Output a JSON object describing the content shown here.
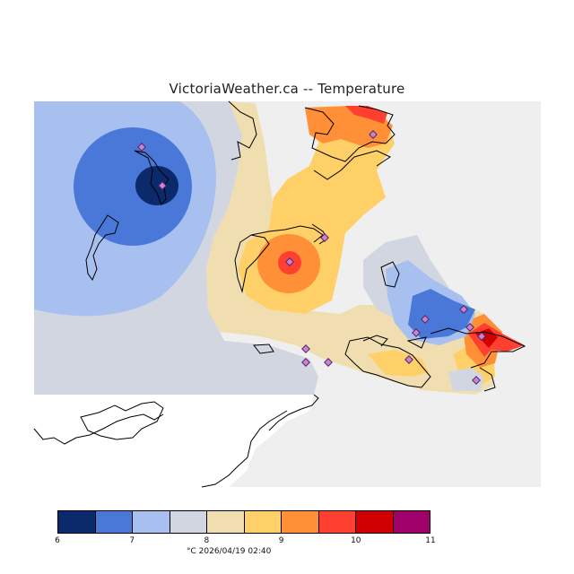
{
  "title": "VictoriaWeather.ca -- Temperature",
  "legend": {
    "colors": [
      "#0b2a6b",
      "#4a78d8",
      "#a8c0f0",
      "#d2d6e0",
      "#f0deb0",
      "#ffd068",
      "#ff9038",
      "#ff4030",
      "#d00000",
      "#a0006a"
    ],
    "ticks": [
      "6",
      "7",
      "8",
      "9",
      "10",
      "11"
    ]
  },
  "caption": "°C  2026/04/19 02:40",
  "zones": {
    "no_data_bg": "#efefef",
    "land_white": "#ffffff"
  }
}
